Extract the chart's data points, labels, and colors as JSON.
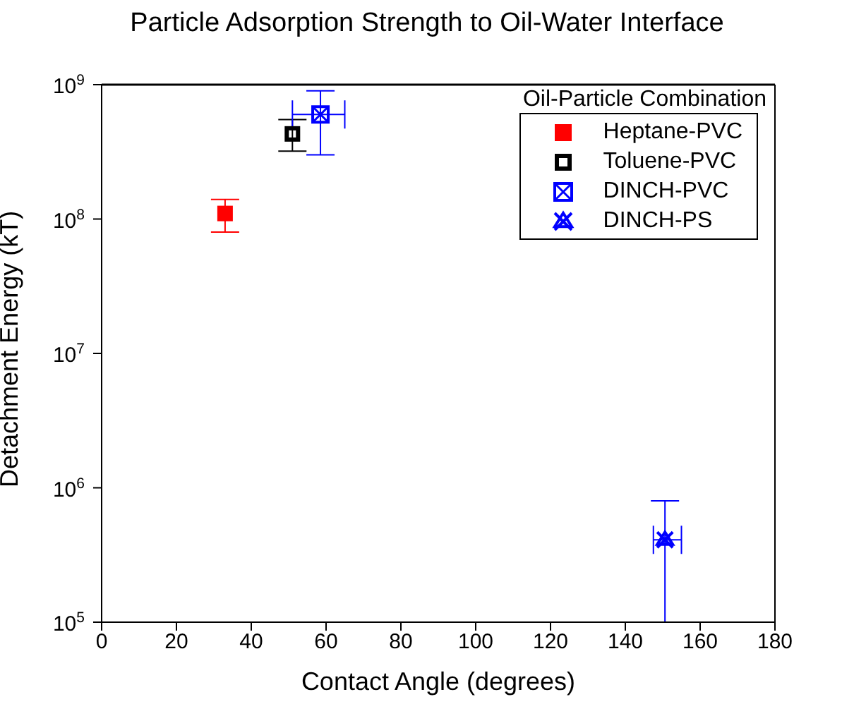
{
  "chart_data": {
    "type": "scatter",
    "title": "Particle Adsorption Strength to Oil-Water Interface",
    "xlabel": "Contact Angle (degrees)",
    "ylabel": "Detachment Energy (kT)",
    "legend_title": "Oil-Particle Combination",
    "legend": "top right",
    "log": "y",
    "grid": false,
    "xlim": [
      0,
      180
    ],
    "xticks": [
      0,
      20,
      40,
      60,
      80,
      100,
      120,
      140,
      160,
      180
    ],
    "ylim": [
      100000,
      1000000000
    ],
    "yticks": [
      {
        "value": 100000,
        "label": "10$^{5}$"
      },
      {
        "value": 1000000,
        "label": "10$^{6}$"
      },
      {
        "value": 10000000,
        "label": "10$^{7}$"
      },
      {
        "value": 100000000,
        "label": "10$^{8}$"
      },
      {
        "value": 1000000000,
        "label": "10$^{9}$"
      }
    ],
    "series": [
      {
        "name": "Heptane-PVC",
        "color": "#ff0000",
        "marker": "square",
        "x": [
          33
        ],
        "values": [
          110000000
        ],
        "errors": [
          [
            80000000,
            140000000
          ]
        ]
      },
      {
        "name": "Toluene-PVC",
        "color": "#000000",
        "marker": "square",
        "x": [
          51
        ],
        "values": [
          430000000
        ],
        "errors": [
          [
            320000000,
            550000000
          ]
        ]
      },
      {
        "name": "DINCH-PVC",
        "color": "#0000ff",
        "marker": "square",
        "x": [
          58.5
        ],
        "values": [
          600000000
        ],
        "errors": [
          [
            300000000,
            900000000
          ]
        ],
        "xerrors": [
          [
            51,
            65
          ]
        ]
      },
      {
        "name": "DINCH-PS",
        "color": "#0000ff",
        "marker": "cross",
        "x": [
          150.6
        ],
        "values": [
          410000
        ],
        "errors": [
          [
            100000,
            800000
          ]
        ],
        "xerrors": [
          [
            147.5,
            155
          ]
        ]
      }
    ]
  }
}
